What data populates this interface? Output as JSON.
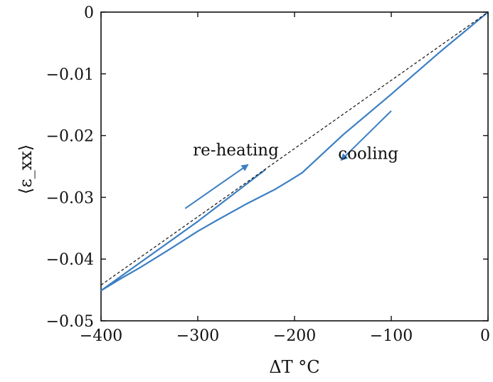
{
  "chart_data": {
    "type": "line",
    "title": "",
    "xlabel": "ΔT °C",
    "ylabel": "⟨ε_xx⟩",
    "xlim": [
      -400,
      0
    ],
    "ylim": [
      -0.05,
      0
    ],
    "x_ticks": [
      -400,
      -300,
      -200,
      -100,
      0
    ],
    "x_tick_labels": [
      "−400",
      "−300",
      "−200",
      "−100",
      "0"
    ],
    "y_ticks": [
      0,
      -0.01,
      -0.02,
      -0.03,
      -0.04,
      -0.05
    ],
    "y_tick_labels": [
      "0",
      "−0.01",
      "−0.02",
      "−0.03",
      "−0.04",
      "−0.05"
    ],
    "grid": false,
    "series": [
      {
        "x": [
          0,
          -50,
          -100,
          -150,
          -192,
          -200,
          -220,
          -250,
          -280,
          -300,
          -330,
          -360,
          -380,
          -400
        ],
        "y": [
          0,
          -0.0065,
          -0.0133,
          -0.0199,
          -0.026,
          -0.0268,
          -0.0287,
          -0.0311,
          -0.0337,
          -0.0355,
          -0.0385,
          -0.0414,
          -0.0432,
          -0.0451
        ],
        "color": "#3b7fc4",
        "style": "solid"
      },
      {
        "x": [
          -400,
          -300,
          -230
        ],
        "y": [
          -0.0451,
          -0.0339,
          -0.0255
        ],
        "color": "#3b7fc4",
        "style": "solid"
      },
      {
        "x": [
          -400,
          0
        ],
        "y": [
          -0.0442,
          0
        ],
        "color": "#111111",
        "style": "dashed"
      }
    ],
    "annotations": [
      {
        "text": "re-heating",
        "x": -305,
        "y": -0.0232
      },
      {
        "text": "cooling",
        "x": -155,
        "y": -0.0238
      }
    ],
    "arrows": [
      {
        "from": [
          -313,
          -0.0318
        ],
        "to": [
          -248,
          -0.0247
        ],
        "color": "#3b7fc4"
      },
      {
        "from": [
          -100,
          -0.016
        ],
        "to": [
          -152,
          -0.024
        ],
        "color": "#3b7fc4"
      }
    ]
  }
}
